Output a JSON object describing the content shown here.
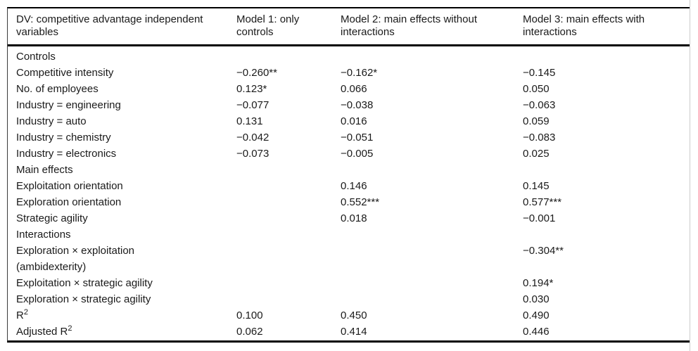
{
  "table": {
    "header": {
      "col0": "DV: competitive advantage independent\nvariables",
      "col1": "Model 1: only\ncontrols",
      "col2": "Model 2: main effects without\ninteractions",
      "col3": "Model 3: main effects with\ninteractions"
    },
    "rows": [
      {
        "label": "Controls",
        "sup": "",
        "m1": "",
        "m2": "",
        "m3": ""
      },
      {
        "label": "Competitive intensity",
        "sup": "",
        "m1": "−0.260**",
        "m2": "−0.162*",
        "m3": "−0.145"
      },
      {
        "label": "No. of employees",
        "sup": "",
        "m1": "0.123*",
        "m2": "0.066",
        "m3": "0.050"
      },
      {
        "label": "Industry = engineering",
        "sup": "",
        "m1": "−0.077",
        "m2": "−0.038",
        "m3": "−0.063"
      },
      {
        "label": "Industry = auto",
        "sup": "",
        "m1": "0.131",
        "m2": "0.016",
        "m3": "0.059"
      },
      {
        "label": "Industry = chemistry",
        "sup": "",
        "m1": "−0.042",
        "m2": "−0.051",
        "m3": "−0.083"
      },
      {
        "label": "Industry = electronics",
        "sup": "",
        "m1": "−0.073",
        "m2": "−0.005",
        "m3": "0.025"
      },
      {
        "label": "Main effects",
        "sup": "",
        "m1": "",
        "m2": "",
        "m3": ""
      },
      {
        "label": "Exploitation orientation",
        "sup": "",
        "m1": "",
        "m2": "0.146",
        "m3": "0.145"
      },
      {
        "label": "Exploration orientation",
        "sup": "",
        "m1": "",
        "m2": "0.552***",
        "m3": "0.577***"
      },
      {
        "label": "Strategic agility",
        "sup": "",
        "m1": "",
        "m2": "0.018",
        "m3": "−0.001"
      },
      {
        "label": "Interactions",
        "sup": "",
        "m1": "",
        "m2": "",
        "m3": ""
      },
      {
        "label": "Exploration × exploitation\n(ambidexterity)",
        "sup": "",
        "m1": "",
        "m2": "",
        "m3": "−0.304**"
      },
      {
        "label": "Exploitation × strategic agility",
        "sup": "",
        "m1": "",
        "m2": "",
        "m3": "0.194*"
      },
      {
        "label": "Exploration × strategic agility",
        "sup": "",
        "m1": "",
        "m2": "",
        "m3": "0.030"
      },
      {
        "label": "R",
        "sup": "2",
        "m1": "0.100",
        "m2": "0.450",
        "m3": "0.490"
      },
      {
        "label": "Adjusted R",
        "sup": "2",
        "m1": "0.062",
        "m2": "0.414",
        "m3": "0.446"
      }
    ]
  },
  "colors": {
    "text": "#1a1a1a",
    "rule": "#000000",
    "page_edge": "#cccccc"
  }
}
